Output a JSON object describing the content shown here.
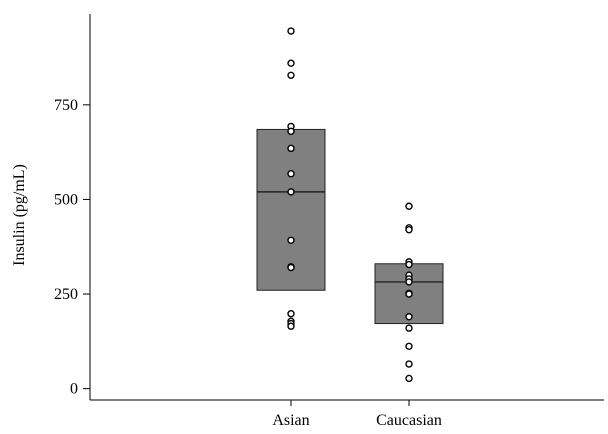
{
  "chart_data": {
    "type": "box",
    "title": "",
    "xlabel": "",
    "ylabel": "Insulin (pg/mL)",
    "categories": [
      "Asian",
      "Caucasian"
    ],
    "ylim": [
      -30,
      990
    ],
    "yticks": [
      0,
      250,
      500,
      750
    ],
    "ytick_labels": [
      "0",
      "250",
      "500",
      "750"
    ],
    "grid": false,
    "legend": "none",
    "box_fill": "#808080",
    "series": [
      {
        "category": "Asian",
        "q1": 260,
        "median": 520,
        "q3": 685,
        "points": [
          945,
          860,
          828,
          693,
          680,
          635,
          568,
          520,
          392,
          322,
          320,
          198,
          178,
          172,
          165
        ]
      },
      {
        "category": "Caucasian",
        "q1": 172,
        "median": 282,
        "q3": 330,
        "points": [
          482,
          425,
          420,
          335,
          328,
          300,
          290,
          282,
          252,
          250,
          190,
          160,
          112,
          65,
          27
        ]
      }
    ]
  }
}
